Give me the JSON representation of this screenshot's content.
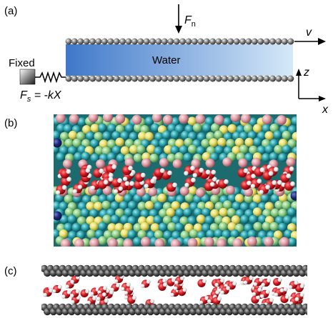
{
  "panels": [
    {
      "label": "(a)"
    },
    {
      "label": "(b)"
    },
    {
      "label": "(c)"
    }
  ],
  "schematic": {
    "fixed_label": "Fixed",
    "water_label": "Water",
    "normal_force_symbol": "F",
    "normal_force_subscript": "n",
    "spring_force_symbol": "F",
    "spring_force_subscript": "s",
    "spring_force_rhs": " = -kX",
    "velocity_symbol": "v",
    "axis_z": "z",
    "axis_x": "x"
  },
  "colors": {
    "wall_bead": "#8a8a8a",
    "water_left": "#3f78c9",
    "water_right": "#cfe4f7",
    "oxygen": "#d41820",
    "hydrogen": "#eeeeee",
    "mica_teal": "#2aa3ad",
    "mica_green": "#8fd08a",
    "mica_pink": "#e1a0a8",
    "mica_navy": "#1d2a7a",
    "graphite": "#4a4a4a"
  }
}
